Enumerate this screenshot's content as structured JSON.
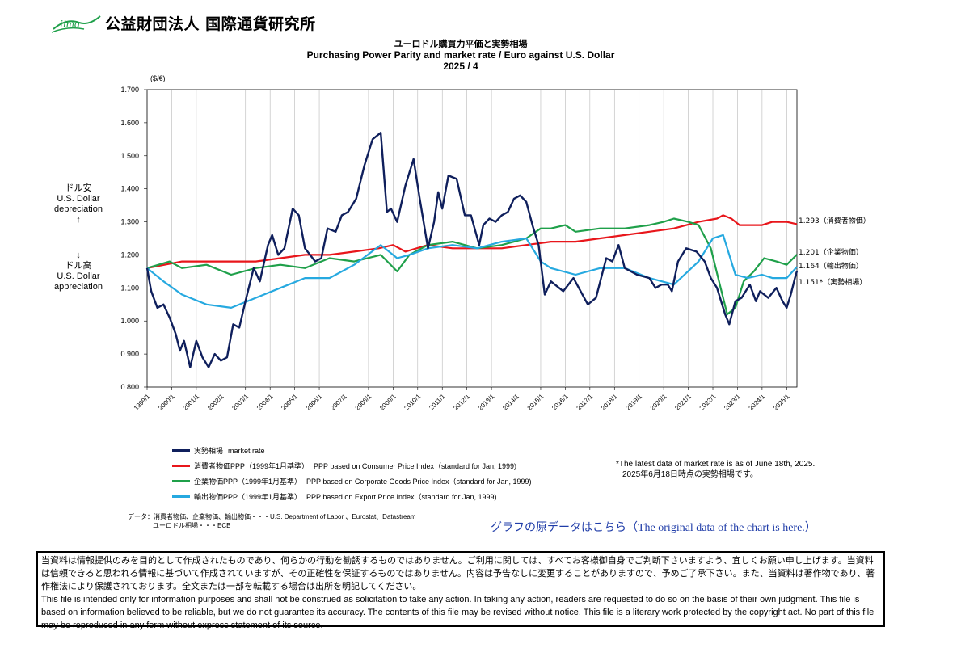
{
  "header": {
    "logo_text": "iima",
    "org_name": "公益財団法人  国際通貨研究所",
    "title_ja": "ユーロドル購買力平価と実勢相場",
    "title_en": "Purchasing Power Parity and market rate / Euro against  U.S. Dollar",
    "date": "2025 / 4"
  },
  "side_labels": {
    "up_ja": "ドル安",
    "up_en1": "U.S. Dollar",
    "up_en2": "depreciation",
    "up_arrow": "↑",
    "down_arrow": "↓",
    "down_ja": "ドル高",
    "down_en1": "U.S. Dollar",
    "down_en2": "appreciation"
  },
  "legend": [
    {
      "ja": "実勢相場",
      "en": "market rate",
      "color": "#0f1f5c"
    },
    {
      "ja": "消費者物価PPP（1999年1月基準）",
      "en": "PPP based on Consumer Price Index（standard for Jan, 1999)",
      "color": "#e8161b"
    },
    {
      "ja": "企業物価PPP（1999年1月基準）",
      "en": "PPP based on Corporate Goods Price Index（standard for Jan, 1999)",
      "color": "#1fa04a"
    },
    {
      "ja": "輸出物価PPP（1999年1月基準）",
      "en": "PPP based on Export Price Index（standard for Jan, 1999)",
      "color": "#26a9e0"
    }
  ],
  "note": {
    "en": "*The latest data of market rate is as of  June 18th, 2025.",
    "ja": "2025年6月18日時点の実勢相場です。"
  },
  "source": {
    "line1": "データ：消費者物価、企業物価、輸出物価・・・U.S. Department of Labor 、Eurostat、Datastream",
    "line2": "ユーロドル相場・・・ECB"
  },
  "link_text": "グラフの原データはこちら（The original data of the chart is here.）",
  "disclaimer": {
    "ja": "当資料は情報提供のみを目的として作成されたものであり、何らかの行動を勧誘するものではありません。ご利用に関しては、すべてお客様御自身でご判断下さいますよう、宜しくお願い申し上げます。当資料は信頼できると思われる情報に基づいて作成されていますが、その正確性を保証するものではありません。内容は予告なしに変更することがありますので、予めご了承下さい。また、当資料は著作物であり、著作権法により保護されております。全文または一部を転載する場合は出所を明記してください。",
    "en": "This file is intended only for information purposes and shall not be construed as solicitation to take any action. In taking any action, readers are requested to do so on the basis of their own judgment. This file is based on information believed to be reliable, but we do not guarantee its accuracy. The contents of this file may be revised without notice. This file is a literary work protected by the copyright act. No part of this file may be reproduced in any form without express statement of its source."
  },
  "chart_data": {
    "type": "line",
    "title": "Purchasing Power Parity and market rate / Euro against  U.S. Dollar",
    "ylabel": "($/€)",
    "ylim": [
      0.8,
      1.7
    ],
    "yticks": [
      "0.800",
      "0.900",
      "1.000",
      "1.100",
      "1.200",
      "1.300",
      "1.400",
      "1.500",
      "1.600",
      "1.700"
    ],
    "xlim": [
      "1999-01",
      "2025-06"
    ],
    "xticks": [
      "1999/1",
      "2000/1",
      "2001/1",
      "2002/1",
      "2003/1",
      "2004/1",
      "2005/1",
      "2006/1",
      "2007/1",
      "2008/1",
      "2009/1",
      "2010/1",
      "2011/1",
      "2012/1",
      "2013/1",
      "2014/1",
      "2015/1",
      "2016/1",
      "2017/1",
      "2018/1",
      "2019/1",
      "2020/1",
      "2021/1",
      "2022/1",
      "2023/1",
      "2024/1",
      "2025/1"
    ],
    "grid": "vertical",
    "legend_position": "bottom-left",
    "series": [
      {
        "name": "実勢相場",
        "color": "#0f1f5c",
        "end_label": "1.151*（実勢相場）",
        "points": [
          [
            "1999-01",
            1.16
          ],
          [
            "1999-03",
            1.09
          ],
          [
            "1999-06",
            1.04
          ],
          [
            "1999-09",
            1.05
          ],
          [
            "1999-12",
            1.01
          ],
          [
            "2000-03",
            0.96
          ],
          [
            "2000-05",
            0.91
          ],
          [
            "2000-07",
            0.94
          ],
          [
            "2000-10",
            0.86
          ],
          [
            "2001-01",
            0.94
          ],
          [
            "2001-04",
            0.89
          ],
          [
            "2001-07",
            0.86
          ],
          [
            "2001-10",
            0.9
          ],
          [
            "2002-01",
            0.88
          ],
          [
            "2002-04",
            0.89
          ],
          [
            "2002-07",
            0.99
          ],
          [
            "2002-10",
            0.98
          ],
          [
            "2003-01",
            1.06
          ],
          [
            "2003-05",
            1.16
          ],
          [
            "2003-08",
            1.12
          ],
          [
            "2003-12",
            1.23
          ],
          [
            "2004-02",
            1.26
          ],
          [
            "2004-05",
            1.2
          ],
          [
            "2004-08",
            1.22
          ],
          [
            "2004-12",
            1.34
          ],
          [
            "2005-03",
            1.32
          ],
          [
            "2005-06",
            1.22
          ],
          [
            "2005-11",
            1.18
          ],
          [
            "2006-02",
            1.19
          ],
          [
            "2006-05",
            1.28
          ],
          [
            "2006-09",
            1.27
          ],
          [
            "2006-12",
            1.32
          ],
          [
            "2007-03",
            1.33
          ],
          [
            "2007-07",
            1.37
          ],
          [
            "2007-11",
            1.47
          ],
          [
            "2008-03",
            1.55
          ],
          [
            "2008-07",
            1.57
          ],
          [
            "2008-10",
            1.33
          ],
          [
            "2008-12",
            1.34
          ],
          [
            "2009-03",
            1.3
          ],
          [
            "2009-07",
            1.41
          ],
          [
            "2009-11",
            1.49
          ],
          [
            "2010-02",
            1.37
          ],
          [
            "2010-06",
            1.22
          ],
          [
            "2010-09",
            1.3
          ],
          [
            "2010-11",
            1.39
          ],
          [
            "2011-01",
            1.34
          ],
          [
            "2011-04",
            1.44
          ],
          [
            "2011-08",
            1.43
          ],
          [
            "2011-12",
            1.32
          ],
          [
            "2012-03",
            1.32
          ],
          [
            "2012-07",
            1.23
          ],
          [
            "2012-09",
            1.29
          ],
          [
            "2012-12",
            1.31
          ],
          [
            "2013-03",
            1.3
          ],
          [
            "2013-06",
            1.32
          ],
          [
            "2013-09",
            1.33
          ],
          [
            "2013-12",
            1.37
          ],
          [
            "2014-03",
            1.38
          ],
          [
            "2014-06",
            1.36
          ],
          [
            "2014-09",
            1.29
          ],
          [
            "2014-12",
            1.23
          ],
          [
            "2015-03",
            1.08
          ],
          [
            "2015-06",
            1.12
          ],
          [
            "2015-12",
            1.09
          ],
          [
            "2016-05",
            1.13
          ],
          [
            "2016-12",
            1.05
          ],
          [
            "2017-04",
            1.07
          ],
          [
            "2017-09",
            1.19
          ],
          [
            "2017-12",
            1.18
          ],
          [
            "2018-03",
            1.23
          ],
          [
            "2018-06",
            1.16
          ],
          [
            "2018-12",
            1.14
          ],
          [
            "2019-06",
            1.13
          ],
          [
            "2019-09",
            1.1
          ],
          [
            "2019-12",
            1.11
          ],
          [
            "2020-03",
            1.11
          ],
          [
            "2020-05",
            1.09
          ],
          [
            "2020-08",
            1.18
          ],
          [
            "2020-12",
            1.22
          ],
          [
            "2021-05",
            1.21
          ],
          [
            "2021-09",
            1.18
          ],
          [
            "2021-12",
            1.13
          ],
          [
            "2022-03",
            1.1
          ],
          [
            "2022-07",
            1.02
          ],
          [
            "2022-09",
            0.99
          ],
          [
            "2022-12",
            1.06
          ],
          [
            "2023-03",
            1.07
          ],
          [
            "2023-07",
            1.11
          ],
          [
            "2023-10",
            1.06
          ],
          [
            "2023-12",
            1.09
          ],
          [
            "2024-04",
            1.07
          ],
          [
            "2024-08",
            1.1
          ],
          [
            "2024-11",
            1.06
          ],
          [
            "2025-01",
            1.04
          ],
          [
            "2025-03",
            1.08
          ],
          [
            "2025-05",
            1.13
          ],
          [
            "2025-06",
            1.151
          ]
        ]
      },
      {
        "name": "消費者物価PPP",
        "color": "#e8161b",
        "end_label": "1.293（消費者物価）",
        "points": [
          [
            "1999-01",
            1.16
          ],
          [
            "2000-06",
            1.18
          ],
          [
            "2001-06",
            1.18
          ],
          [
            "2002-06",
            1.18
          ],
          [
            "2003-06",
            1.18
          ],
          [
            "2004-06",
            1.19
          ],
          [
            "2005-06",
            1.2
          ],
          [
            "2006-06",
            1.2
          ],
          [
            "2007-06",
            1.21
          ],
          [
            "2008-06",
            1.22
          ],
          [
            "2009-01",
            1.23
          ],
          [
            "2009-07",
            1.21
          ],
          [
            "2010-06",
            1.23
          ],
          [
            "2011-06",
            1.22
          ],
          [
            "2012-06",
            1.22
          ],
          [
            "2013-06",
            1.22
          ],
          [
            "2014-06",
            1.23
          ],
          [
            "2015-06",
            1.24
          ],
          [
            "2016-06",
            1.24
          ],
          [
            "2017-06",
            1.25
          ],
          [
            "2018-06",
            1.26
          ],
          [
            "2019-06",
            1.27
          ],
          [
            "2020-06",
            1.28
          ],
          [
            "2021-06",
            1.3
          ],
          [
            "2022-03",
            1.31
          ],
          [
            "2022-06",
            1.32
          ],
          [
            "2022-10",
            1.31
          ],
          [
            "2023-02",
            1.29
          ],
          [
            "2023-06",
            1.29
          ],
          [
            "2024-01",
            1.29
          ],
          [
            "2024-06",
            1.3
          ],
          [
            "2025-01",
            1.3
          ],
          [
            "2025-06",
            1.293
          ]
        ]
      },
      {
        "name": "企業物価PPP",
        "color": "#1fa04a",
        "end_label": "1.201（企業物価）",
        "points": [
          [
            "1999-01",
            1.16
          ],
          [
            "1999-12",
            1.18
          ],
          [
            "2000-06",
            1.16
          ],
          [
            "2001-06",
            1.17
          ],
          [
            "2002-06",
            1.14
          ],
          [
            "2003-06",
            1.16
          ],
          [
            "2004-06",
            1.17
          ],
          [
            "2005-06",
            1.16
          ],
          [
            "2006-06",
            1.19
          ],
          [
            "2007-06",
            1.18
          ],
          [
            "2008-07",
            1.2
          ],
          [
            "2009-03",
            1.15
          ],
          [
            "2009-09",
            1.2
          ],
          [
            "2010-06",
            1.23
          ],
          [
            "2011-06",
            1.24
          ],
          [
            "2012-06",
            1.22
          ],
          [
            "2013-06",
            1.23
          ],
          [
            "2014-06",
            1.25
          ],
          [
            "2015-01",
            1.28
          ],
          [
            "2015-06",
            1.28
          ],
          [
            "2016-01",
            1.29
          ],
          [
            "2016-06",
            1.27
          ],
          [
            "2017-06",
            1.28
          ],
          [
            "2018-06",
            1.28
          ],
          [
            "2019-06",
            1.29
          ],
          [
            "2020-01",
            1.3
          ],
          [
            "2020-06",
            1.31
          ],
          [
            "2021-01",
            1.3
          ],
          [
            "2021-06",
            1.29
          ],
          [
            "2021-12",
            1.22
          ],
          [
            "2022-04",
            1.12
          ],
          [
            "2022-08",
            1.02
          ],
          [
            "2022-12",
            1.04
          ],
          [
            "2023-04",
            1.12
          ],
          [
            "2023-09",
            1.15
          ],
          [
            "2024-02",
            1.19
          ],
          [
            "2024-08",
            1.18
          ],
          [
            "2025-01",
            1.17
          ],
          [
            "2025-06",
            1.201
          ]
        ]
      },
      {
        "name": "輸出物価PPP",
        "color": "#26a9e0",
        "end_label": "1.164（輸出物価）",
        "points": [
          [
            "1999-01",
            1.16
          ],
          [
            "1999-09",
            1.12
          ],
          [
            "2000-06",
            1.08
          ],
          [
            "2001-06",
            1.05
          ],
          [
            "2002-06",
            1.04
          ],
          [
            "2003-06",
            1.07
          ],
          [
            "2004-06",
            1.1
          ],
          [
            "2005-06",
            1.13
          ],
          [
            "2006-06",
            1.13
          ],
          [
            "2007-06",
            1.17
          ],
          [
            "2008-07",
            1.23
          ],
          [
            "2009-03",
            1.19
          ],
          [
            "2009-09",
            1.2
          ],
          [
            "2010-06",
            1.22
          ],
          [
            "2011-06",
            1.23
          ],
          [
            "2012-06",
            1.22
          ],
          [
            "2013-06",
            1.24
          ],
          [
            "2014-06",
            1.25
          ],
          [
            "2015-01",
            1.18
          ],
          [
            "2015-06",
            1.16
          ],
          [
            "2016-06",
            1.14
          ],
          [
            "2017-06",
            1.16
          ],
          [
            "2018-06",
            1.16
          ],
          [
            "2019-06",
            1.13
          ],
          [
            "2020-06",
            1.11
          ],
          [
            "2021-06",
            1.18
          ],
          [
            "2022-01",
            1.25
          ],
          [
            "2022-06",
            1.26
          ],
          [
            "2022-12",
            1.14
          ],
          [
            "2023-06",
            1.13
          ],
          [
            "2024-01",
            1.14
          ],
          [
            "2024-06",
            1.13
          ],
          [
            "2025-01",
            1.13
          ],
          [
            "2025-06",
            1.164
          ]
        ]
      }
    ]
  }
}
